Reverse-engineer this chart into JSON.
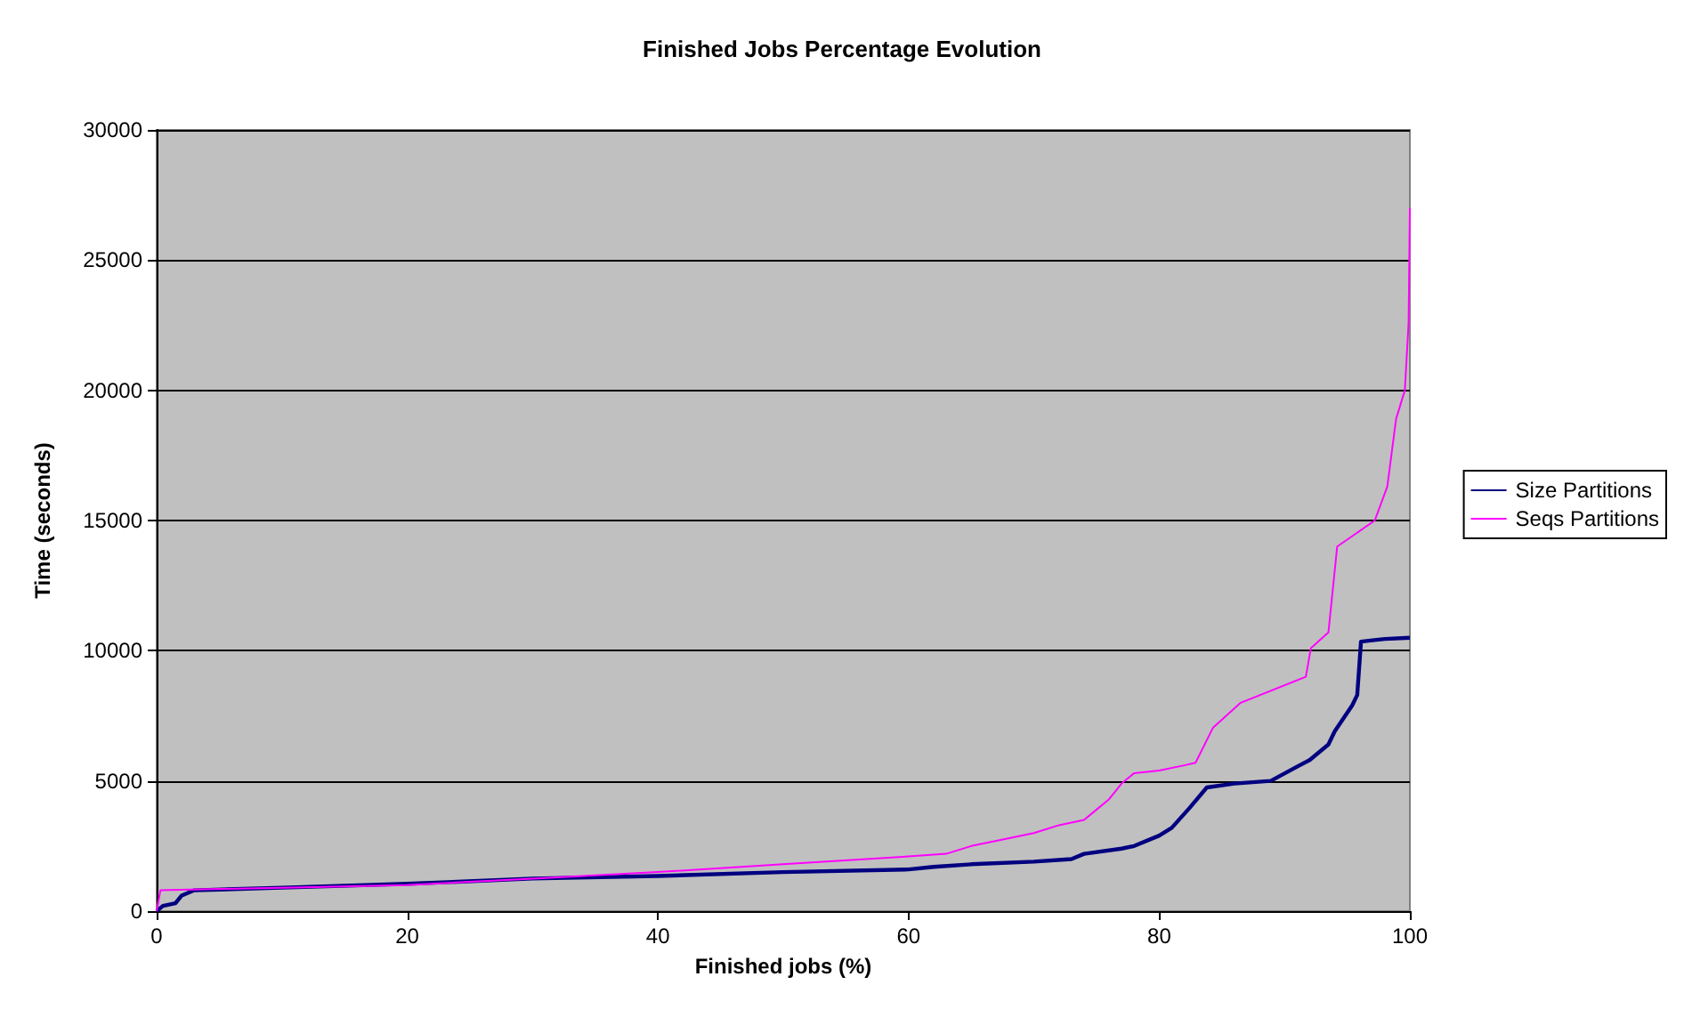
{
  "chart_data": {
    "type": "line",
    "title": "Finished Jobs Percentage Evolution",
    "xlabel": "Finished jobs (%)",
    "ylabel": "Time (seconds)",
    "xlim": [
      0,
      100
    ],
    "xticks": [
      0,
      20,
      40,
      60,
      80,
      100
    ],
    "ylim": [
      0,
      30000
    ],
    "yticks": [
      0,
      5000,
      10000,
      15000,
      20000,
      25000,
      30000
    ],
    "grid": "y",
    "legend": "right",
    "marker": "none",
    "line_style": "solid",
    "series": [
      {
        "name": "Size Partitions",
        "color": "#000080",
        "x": [
          0,
          0.5,
          1.5,
          2,
          3,
          10,
          20,
          30,
          40,
          50,
          60,
          62,
          65,
          70,
          73,
          74,
          77,
          78,
          80,
          81,
          82.4,
          83.8,
          86,
          88.9,
          91.2,
          92,
          93.5,
          94,
          95.4,
          95.8,
          96.1,
          97,
          98,
          100
        ],
        "values": [
          0,
          200,
          300,
          600,
          800,
          900,
          1050,
          1250,
          1350,
          1500,
          1600,
          1700,
          1800,
          1900,
          2000,
          2200,
          2400,
          2500,
          2900,
          3200,
          3950,
          4750,
          4900,
          5000,
          5600,
          5800,
          6400,
          6900,
          7900,
          8300,
          10350,
          10400,
          10450,
          10500
        ]
      },
      {
        "name": "Seqs Partitions",
        "color": "#ff00ff",
        "x": [
          0,
          0.3,
          5,
          10,
          20,
          30,
          40,
          50,
          60,
          63,
          65,
          67,
          70,
          72,
          74,
          75,
          76,
          77,
          78,
          80,
          82,
          82.9,
          84.3,
          86.5,
          91.7,
          92.1,
          93.5,
          94.2,
          97.2,
          98.2,
          98.9,
          99.6,
          99.9,
          100
        ],
        "values": [
          0,
          800,
          850,
          900,
          1000,
          1250,
          1500,
          1800,
          2100,
          2200,
          2500,
          2700,
          3000,
          3300,
          3500,
          3900,
          4300,
          4900,
          5300,
          5400,
          5600,
          5700,
          7050,
          8000,
          9000,
          10100,
          10700,
          14000,
          15000,
          16300,
          18900,
          20000,
          22600,
          27000
        ]
      }
    ]
  }
}
